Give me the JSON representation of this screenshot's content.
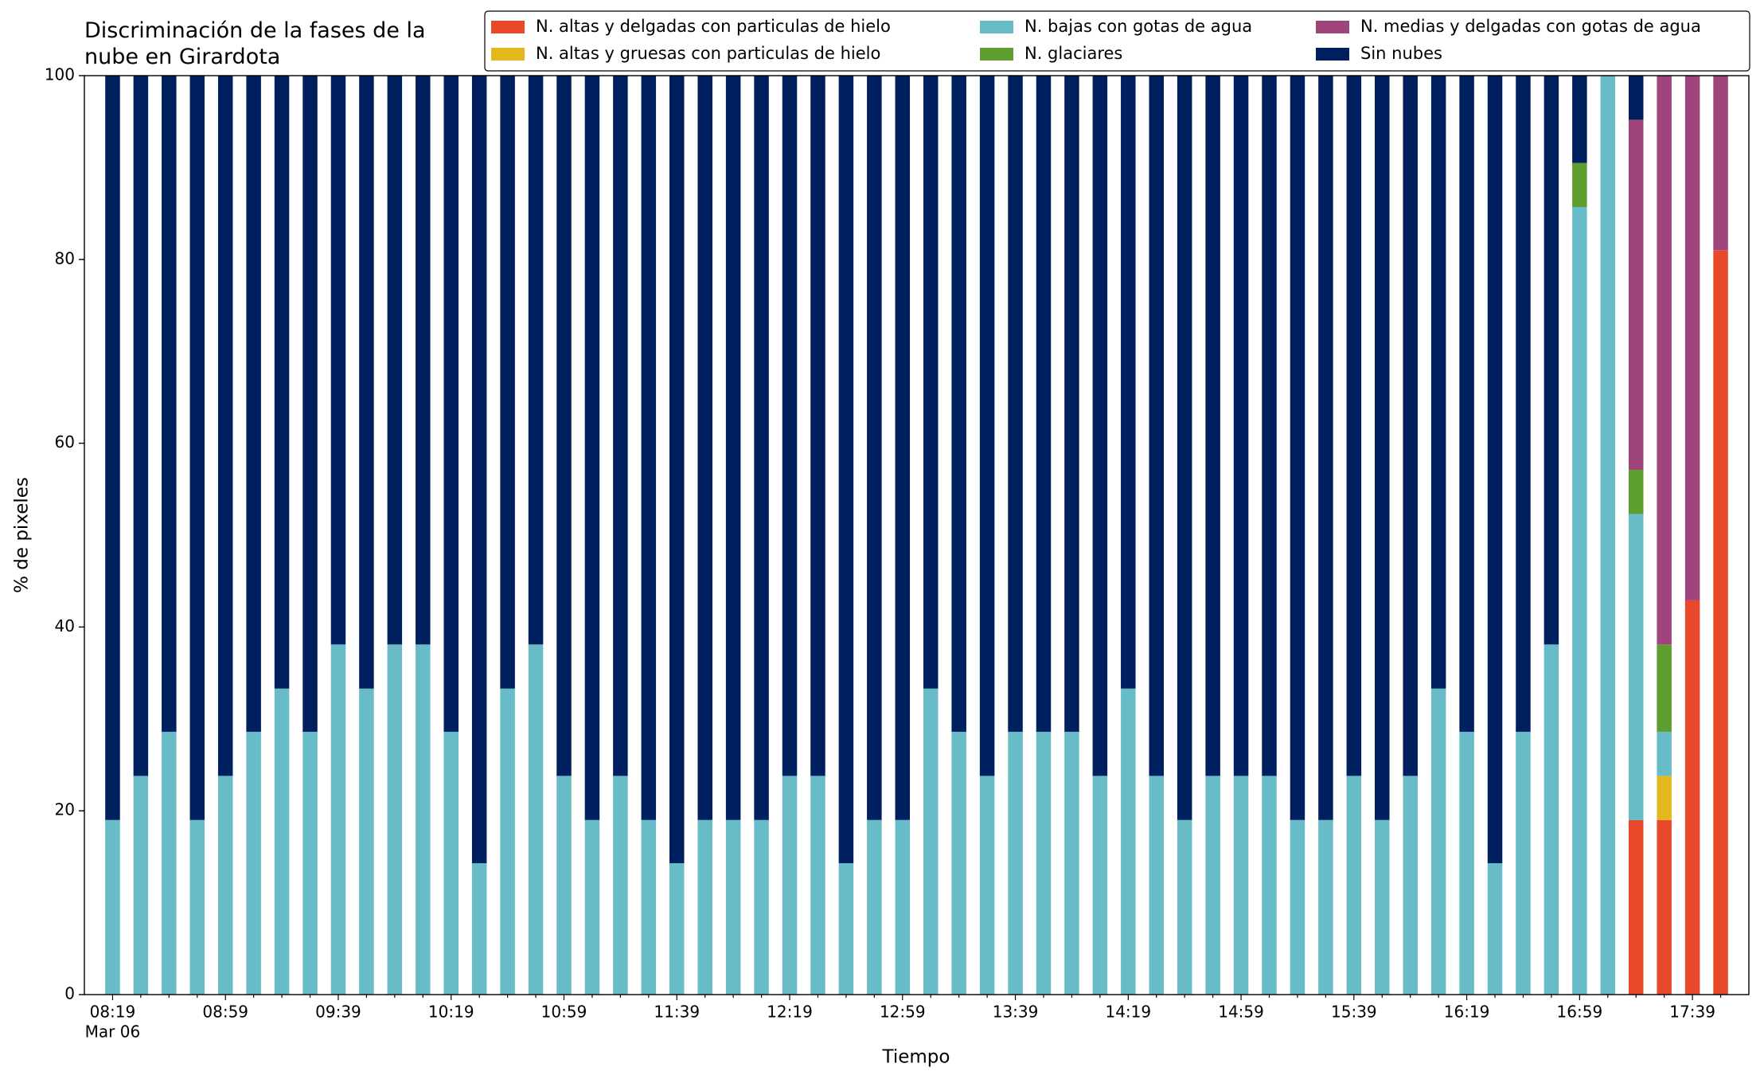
{
  "chart_data": {
    "type": "stacked_bar",
    "title": "Discriminación de la fases de la\nnube en Girardota",
    "x_label": "Tiempo",
    "y_label": "% de pixeles",
    "date_label": "Mar 06",
    "categories": [
      "08:19",
      null,
      null,
      null,
      "08:59",
      null,
      null,
      null,
      "09:39",
      null,
      null,
      null,
      "10:19",
      null,
      null,
      null,
      "10:59",
      null,
      null,
      null,
      "11:39",
      null,
      null,
      null,
      "12:19",
      null,
      null,
      null,
      "12:59",
      null,
      null,
      null,
      "13:39",
      null,
      null,
      null,
      "14:19",
      null,
      null,
      null,
      "14:59",
      null,
      null,
      null,
      "15:39",
      null,
      null,
      null,
      "16:19",
      null,
      null,
      null,
      "16:59",
      null,
      null,
      null,
      "17:39",
      null
    ],
    "ylim": [
      0,
      100
    ],
    "yticks": [
      0,
      20,
      40,
      60,
      80,
      100
    ],
    "legend": "top-right",
    "series": [
      {
        "name": "N. altas y delgadas con particulas de hielo",
        "color": "#e8492a",
        "values": [
          0,
          0,
          0,
          0,
          0,
          0,
          0,
          0,
          0,
          0,
          0,
          0,
          0,
          0,
          0,
          0,
          0,
          0,
          0,
          0,
          0,
          0,
          0,
          0,
          0,
          0,
          0,
          0,
          0,
          0,
          0,
          0,
          0,
          0,
          0,
          0,
          0,
          0,
          0,
          0,
          0,
          0,
          0,
          0,
          0,
          0,
          0,
          0,
          0,
          0,
          0,
          0,
          0,
          0,
          19.0,
          19.0,
          42.9,
          81.0
        ]
      },
      {
        "name": "N. altas y gruesas con particulas de hielo",
        "color": "#e3b81e",
        "values": [
          0,
          0,
          0,
          0,
          0,
          0,
          0,
          0,
          0,
          0,
          0,
          0,
          0,
          0,
          0,
          0,
          0,
          0,
          0,
          0,
          0,
          0,
          0,
          0,
          0,
          0,
          0,
          0,
          0,
          0,
          0,
          0,
          0,
          0,
          0,
          0,
          0,
          0,
          0,
          0,
          0,
          0,
          0,
          0,
          0,
          0,
          0,
          0,
          0,
          0,
          0,
          0,
          0,
          0,
          0,
          4.8,
          0,
          0
        ]
      },
      {
        "name": "N. bajas con gotas de agua",
        "color": "#67bcc8",
        "values": [
          19.0,
          23.8,
          28.6,
          19.0,
          23.8,
          28.6,
          33.3,
          28.6,
          38.1,
          33.3,
          38.1,
          38.1,
          28.6,
          14.3,
          33.3,
          38.1,
          23.8,
          19.0,
          23.8,
          19.0,
          14.3,
          19.0,
          19.0,
          19.0,
          23.8,
          23.8,
          14.3,
          19.0,
          19.0,
          33.3,
          28.6,
          23.8,
          28.6,
          28.6,
          28.6,
          23.8,
          33.3,
          23.8,
          19.0,
          23.8,
          23.8,
          23.8,
          19.0,
          19.0,
          23.8,
          19.0,
          23.8,
          33.3,
          28.6,
          14.3,
          28.6,
          38.1,
          85.7,
          100,
          33.3,
          4.8,
          0,
          0
        ]
      },
      {
        "name": "N. glaciares",
        "color": "#5d9e2e",
        "values": [
          0,
          0,
          0,
          0,
          0,
          0,
          0,
          0,
          0,
          0,
          0,
          0,
          0,
          0,
          0,
          0,
          0,
          0,
          0,
          0,
          0,
          0,
          0,
          0,
          0,
          0,
          0,
          0,
          0,
          0,
          0,
          0,
          0,
          0,
          0,
          0,
          0,
          0,
          0,
          0,
          0,
          0,
          0,
          0,
          0,
          0,
          0,
          0,
          0,
          0,
          0,
          0,
          4.8,
          0,
          4.8,
          9.5,
          0,
          0
        ]
      },
      {
        "name": "N. medias y delgadas con gotas de agua",
        "color": "#a0457c",
        "values": [
          0,
          0,
          0,
          0,
          0,
          0,
          0,
          0,
          0,
          0,
          0,
          0,
          0,
          0,
          0,
          0,
          0,
          0,
          0,
          0,
          0,
          0,
          0,
          0,
          0,
          0,
          0,
          0,
          0,
          0,
          0,
          0,
          0,
          0,
          0,
          0,
          0,
          0,
          0,
          0,
          0,
          0,
          0,
          0,
          0,
          0,
          0,
          0,
          0,
          0,
          0,
          0,
          0,
          0,
          38.1,
          61.9,
          57.1,
          19.0
        ]
      },
      {
        "name": "Sin nubes",
        "color": "#001f5f",
        "values": [
          81.0,
          76.2,
          71.4,
          81.0,
          76.2,
          71.4,
          66.7,
          71.4,
          61.9,
          66.7,
          61.9,
          61.9,
          71.4,
          85.7,
          66.7,
          61.9,
          76.2,
          81.0,
          76.2,
          81.0,
          85.7,
          81.0,
          81.0,
          81.0,
          76.2,
          76.2,
          85.7,
          81.0,
          81.0,
          66.7,
          71.4,
          76.2,
          71.4,
          71.4,
          71.4,
          76.2,
          66.7,
          76.2,
          81.0,
          76.2,
          76.2,
          76.2,
          81.0,
          81.0,
          76.2,
          81.0,
          76.2,
          66.7,
          71.4,
          85.7,
          71.4,
          61.9,
          9.5,
          0,
          4.8,
          0,
          0,
          0
        ]
      }
    ]
  }
}
